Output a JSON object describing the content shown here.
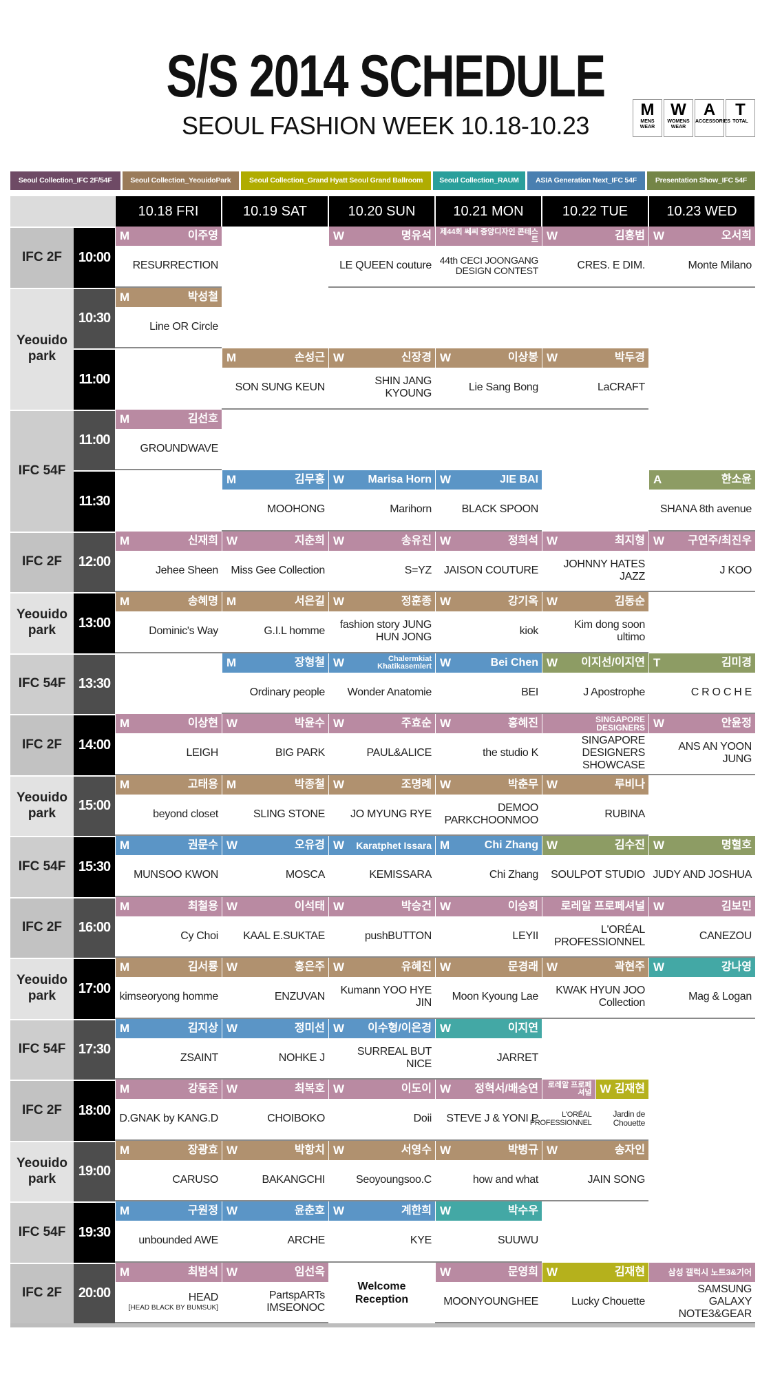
{
  "header": {
    "title": "S/S 2014 SCHEDULE",
    "subtitle": "SEOUL FASHION WEEK 10.18-10.23"
  },
  "icons": [
    {
      "letter": "M",
      "label": "MENS WEAR"
    },
    {
      "letter": "W",
      "label": "WOMENS WEAR"
    },
    {
      "letter": "A",
      "label": "ACCESSORIES"
    },
    {
      "letter": "T",
      "label": "TOTAL"
    }
  ],
  "legend": [
    {
      "label": "Seoul Collection_IFC 2F/54F",
      "color": "#6e4a65"
    },
    {
      "label": "Seoul Collection_YeouidoPark",
      "color": "#9a7b5a"
    },
    {
      "label": "Seoul Collection_Grand Hyatt Seoul Grand Ballroom",
      "color": "#b0ac00"
    },
    {
      "label": "Seoul Collection_RAUM",
      "color": "#2a9f9b"
    },
    {
      "label": "ASIA Generation Next_IFC 54F",
      "color": "#4a7fb0"
    },
    {
      "label": "Presentation Show_IFC 54F",
      "color": "#748547"
    }
  ],
  "days": [
    "10.18 FRI",
    "10.19 SAT",
    "10.20 SUN",
    "10.21 MON",
    "10.22 TUE",
    "10.23 WED"
  ],
  "blocks": [
    {
      "venue": "IFC 2F",
      "color": "#c2c2c2",
      "rows": [
        {
          "time": "10:00",
          "cells": [
            {
              "tag": "M",
              "name": "이주영",
              "brand": "RESURRECTION",
              "color": "#b98aa2"
            },
            null,
            {
              "tag": "W",
              "name": "명유석",
              "brand": "LE QUEEN couture",
              "color": "#b98aa2"
            },
            {
              "name": "제44회 쎄씨 중앙디자인 콘테스트",
              "brand": "44th CECI JOONGANG DESIGN CONTEST",
              "color": "#b98aa2"
            },
            {
              "tag": "W",
              "name": "김홍범",
              "brand": "CRES. E DIM.",
              "color": "#b98aa2"
            },
            {
              "tag": "W",
              "name": "오서희",
              "brand": "Monte Milano",
              "color": "#b98aa2"
            }
          ]
        }
      ]
    },
    {
      "venue": "Yeouido park",
      "color": "#e2e2e2",
      "rows": [
        {
          "time": "10:30",
          "cells": [
            {
              "tag": "M",
              "name": "박성철",
              "brand": "Line OR Circle",
              "color": "#b0916f"
            },
            null,
            null,
            null,
            null,
            null
          ]
        },
        {
          "time": "11:00",
          "cells": [
            null,
            {
              "tag": "M",
              "name": "손성근",
              "brand": "SON SUNG KEUN",
              "color": "#b0916f"
            },
            {
              "tag": "W",
              "name": "신장경",
              "brand": "SHIN JANG KYOUNG",
              "color": "#b0916f"
            },
            {
              "tag": "W",
              "name": "이상봉",
              "brand": "Lie Sang Bong",
              "color": "#b0916f"
            },
            {
              "tag": "W",
              "name": "박두경",
              "brand": "LaCRAFT",
              "color": "#b0916f"
            },
            null
          ]
        }
      ]
    },
    {
      "venue": "IFC 54F",
      "color": "#cdcdcd",
      "rows": [
        {
          "time": "11:00",
          "cells": [
            {
              "tag": "M",
              "name": "김선호",
              "brand": "GROUNDWAVE",
              "color": "#b98aa2"
            },
            null,
            null,
            null,
            null,
            null
          ]
        },
        {
          "time": "11:30",
          "cells": [
            null,
            {
              "tag": "M",
              "name": "김무홍",
              "brand": "MOOHONG",
              "color": "#5b95c6"
            },
            {
              "tag": "W",
              "name": "Marisa Horn",
              "brand": "Marihorn",
              "color": "#5b95c6"
            },
            {
              "tag": "W",
              "name": "JIE BAI",
              "brand": "BLACK SPOON",
              "color": "#5b95c6"
            },
            null,
            {
              "tag": "A",
              "name": "한소윤",
              "brand": "SHANA 8th avenue",
              "color": "#8d9c64"
            }
          ]
        }
      ]
    },
    {
      "venue": "IFC 2F",
      "color": "#c2c2c2",
      "rows": [
        {
          "time": "12:00",
          "cells": [
            {
              "tag": "M",
              "name": "신재희",
              "brand": "Jehee Sheen",
              "color": "#b98aa2"
            },
            {
              "tag": "W",
              "name": "지춘희",
              "brand": "Miss Gee Collection",
              "color": "#b98aa2"
            },
            {
              "tag": "W",
              "name": "송유진",
              "brand": "S=YZ",
              "color": "#b98aa2"
            },
            {
              "tag": "W",
              "name": "정희석",
              "brand": "JAISON COUTURE",
              "color": "#b98aa2"
            },
            {
              "tag": "W",
              "name": "최지형",
              "brand": "JOHNNY HATES JAZZ",
              "color": "#b98aa2"
            },
            {
              "tag": "W",
              "name": "구연주/최진우",
              "brand": "J KOO",
              "color": "#b98aa2"
            }
          ]
        }
      ]
    },
    {
      "venue": "Yeouido park",
      "color": "#e2e2e2",
      "rows": [
        {
          "time": "13:00",
          "cells": [
            {
              "tag": "M",
              "name": "송혜명",
              "brand": "Dominic's Way",
              "color": "#b0916f"
            },
            {
              "tag": "M",
              "name": "서은길",
              "brand": "G.I.L homme",
              "color": "#b0916f"
            },
            {
              "tag": "W",
              "name": "정훈종",
              "brand": "fashion story JUNG HUN JONG",
              "color": "#b0916f"
            },
            {
              "tag": "W",
              "name": "강기옥",
              "brand": "kiok",
              "color": "#b0916f"
            },
            {
              "tag": "W",
              "name": "김동순",
              "brand": "Kim dong soon ultimo",
              "color": "#b0916f"
            },
            null
          ]
        }
      ]
    },
    {
      "venue": "IFC 54F",
      "color": "#cdcdcd",
      "rows": [
        {
          "time": "13:30",
          "cells": [
            null,
            {
              "tag": "M",
              "name": "장형철",
              "brand": "Ordinary people",
              "color": "#5b95c6"
            },
            {
              "tag": "W",
              "name": "Chalermkiat Khatikasemlert",
              "brand": "Wonder Anatomie",
              "color": "#5b95c6"
            },
            {
              "tag": "W",
              "name": "Bei Chen",
              "brand": "BEI",
              "color": "#5b95c6"
            },
            {
              "tag": "W",
              "name": "이지선/이지연",
              "brand": "J Apostrophe",
              "color": "#8d9c64"
            },
            {
              "tag": "T",
              "name": "김미경",
              "brand": "C R O C H E",
              "color": "#8d9c64"
            }
          ]
        }
      ]
    },
    {
      "venue": "IFC 2F",
      "color": "#c2c2c2",
      "rows": [
        {
          "time": "14:00",
          "cells": [
            {
              "tag": "M",
              "name": "이상현",
              "brand": "LEIGH",
              "color": "#b98aa2"
            },
            {
              "tag": "W",
              "name": "박윤수",
              "brand": "BIG PARK",
              "color": "#b98aa2"
            },
            {
              "tag": "W",
              "name": "주효순",
              "brand": "PAUL&ALICE",
              "color": "#b98aa2"
            },
            {
              "tag": "W",
              "name": "홍혜진",
              "brand": "the studio K",
              "color": "#b98aa2"
            },
            {
              "name": "SINGAPORE DESIGNERS",
              "brand": "SINGAPORE DESIGNERS SHOWCASE",
              "color": "#b98aa2"
            },
            {
              "tag": "W",
              "name": "안윤정",
              "brand": "ANS AN YOON JUNG",
              "color": "#b98aa2"
            }
          ]
        }
      ]
    },
    {
      "venue": "Yeouido park",
      "color": "#e2e2e2",
      "rows": [
        {
          "time": "15:00",
          "cells": [
            {
              "tag": "M",
              "name": "고태용",
              "brand": "beyond closet",
              "color": "#b0916f"
            },
            {
              "tag": "M",
              "name": "박종철",
              "brand": "SLING STONE",
              "color": "#b0916f"
            },
            {
              "tag": "W",
              "name": "조명례",
              "brand": "JO MYUNG RYE",
              "color": "#b0916f"
            },
            {
              "tag": "W",
              "name": "박춘무",
              "brand": "DEMOO PARKCHOONMOO",
              "color": "#b0916f"
            },
            {
              "tag": "W",
              "name": "루비나",
              "brand": "RUBINA",
              "color": "#b0916f"
            },
            null
          ]
        }
      ]
    },
    {
      "venue": "IFC 54F",
      "color": "#cdcdcd",
      "rows": [
        {
          "time": "15:30",
          "cells": [
            {
              "tag": "M",
              "name": "권문수",
              "brand": "MUNSOO KWON",
              "color": "#5b95c6"
            },
            {
              "tag": "W",
              "name": "오유경",
              "brand": "MOSCA",
              "color": "#5b95c6"
            },
            {
              "tag": "W",
              "name": "Karatphet Issara",
              "brand": "KEMISSARA",
              "color": "#5b95c6"
            },
            {
              "tag": "M",
              "name": "Chi Zhang",
              "brand": "Chi Zhang",
              "color": "#5b95c6"
            },
            {
              "tag": "W",
              "name": "김수진",
              "brand": "SOULPOT STUDIO",
              "color": "#8d9c64"
            },
            {
              "tag": "W",
              "name": "명혈호",
              "brand": "JUDY AND JOSHUA",
              "color": "#8d9c64"
            }
          ]
        }
      ]
    },
    {
      "venue": "IFC 2F",
      "color": "#c2c2c2",
      "rows": [
        {
          "time": "16:00",
          "cells": [
            {
              "tag": "M",
              "name": "최철용",
              "brand": "Cy Choi",
              "color": "#b98aa2"
            },
            {
              "tag": "W",
              "name": "이석태",
              "brand": "KAAL E.SUKTAE",
              "color": "#b98aa2"
            },
            {
              "tag": "W",
              "name": "박승건",
              "brand": "pushBUTTON",
              "color": "#b98aa2"
            },
            {
              "tag": "W",
              "name": "이승희",
              "brand": "LEYII",
              "color": "#b98aa2"
            },
            {
              "name": "로레알 프로페셔널",
              "brand": "L'ORÉAL PROFESSIONNEL",
              "color": "#b98aa2"
            },
            {
              "tag": "W",
              "name": "김보민",
              "brand": "CANEZOU",
              "color": "#b98aa2"
            }
          ]
        }
      ]
    },
    {
      "venue": "Yeouido park",
      "color": "#e2e2e2",
      "rows": [
        {
          "time": "17:00",
          "cells": [
            {
              "tag": "M",
              "name": "김서룡",
              "brand": "kimseoryong homme",
              "color": "#b0916f"
            },
            {
              "tag": "W",
              "name": "홍은주",
              "brand": "ENZUVAN",
              "color": "#b0916f"
            },
            {
              "tag": "W",
              "name": "유혜진",
              "brand": "Kumann YOO HYE JIN",
              "color": "#b0916f"
            },
            {
              "tag": "W",
              "name": "문경래",
              "brand": "Moon Kyoung Lae",
              "color": "#b0916f"
            },
            {
              "tag": "W",
              "name": "곽현주",
              "brand": "KWAK HYUN JOO Collection",
              "color": "#b0916f"
            },
            {
              "tag": "W",
              "name": "강나영",
              "brand": "Mag & Logan",
              "color": "#43a8a5"
            }
          ]
        }
      ]
    },
    {
      "venue": "IFC 54F",
      "color": "#cdcdcd",
      "rows": [
        {
          "time": "17:30",
          "cells": [
            {
              "tag": "M",
              "name": "김지상",
              "brand": "ZSAINT",
              "color": "#5b95c6"
            },
            {
              "tag": "W",
              "name": "정미선",
              "brand": "NOHKE J",
              "color": "#5b95c6"
            },
            {
              "tag": "W",
              "name": "이수형/이은경",
              "brand": "SURREAL BUT NICE",
              "color": "#5b95c6"
            },
            {
              "tag": "W",
              "name": "이지연",
              "brand": "JARRET",
              "color": "#43a8a5"
            },
            null,
            null
          ]
        }
      ]
    },
    {
      "venue": "IFC 2F",
      "color": "#c2c2c2",
      "rows": [
        {
          "time": "18:00",
          "cells": [
            {
              "tag": "M",
              "name": "강동준",
              "brand": "D.GNAK by KANG.D",
              "color": "#b98aa2"
            },
            {
              "tag": "W",
              "name": "최복호",
              "brand": "CHOIBOKO",
              "color": "#b98aa2"
            },
            {
              "tag": "W",
              "name": "이도이",
              "brand": "Doii",
              "color": "#b98aa2"
            },
            {
              "tag": "W",
              "name": "정혁서/배승연",
              "brand": "STEVE J & YONI P",
              "color": "#b98aa2"
            },
            [
              {
                "name": "로레알 프로페셔널",
                "brand": "L'ORÉAL PROFESSIONNEL",
                "color": "#b98aa2"
              },
              {
                "tag": "W",
                "name": "김재현",
                "brand": "Jardin de Chouette",
                "color": "#b5b11c"
              }
            ],
            null
          ]
        }
      ]
    },
    {
      "venue": "Yeouido park",
      "color": "#e2e2e2",
      "rows": [
        {
          "time": "19:00",
          "cells": [
            {
              "tag": "M",
              "name": "장광효",
              "brand": "CARUSO",
              "color": "#b0916f"
            },
            {
              "tag": "W",
              "name": "박항치",
              "brand": "BAKANGCHI",
              "color": "#b0916f"
            },
            {
              "tag": "W",
              "name": "서영수",
              "brand": "Seoyoungsoo.C",
              "color": "#b0916f"
            },
            {
              "tag": "W",
              "name": "박병규",
              "brand": "how and what",
              "color": "#b0916f"
            },
            {
              "tag": "W",
              "name": "송자인",
              "brand": "JAIN SONG",
              "color": "#b0916f"
            },
            null
          ]
        }
      ]
    },
    {
      "venue": "IFC 54F",
      "color": "#cdcdcd",
      "rows": [
        {
          "time": "19:30",
          "cells": [
            {
              "tag": "M",
              "name": "구원정",
              "brand": "unbounded AWE",
              "color": "#5b95c6"
            },
            {
              "tag": "W",
              "name": "윤춘호",
              "brand": "ARCHE",
              "color": "#5b95c6"
            },
            {
              "tag": "W",
              "name": "계한희",
              "brand": "KYE",
              "color": "#5b95c6"
            },
            {
              "tag": "W",
              "name": "박수우",
              "brand": "SUUWU",
              "color": "#43a8a5"
            },
            null,
            null
          ]
        }
      ]
    },
    {
      "venue": "IFC 2F",
      "color": "#c2c2c2",
      "rows": [
        {
          "time": "20:00",
          "cells": [
            {
              "tag": "M",
              "name": "최범석",
              "brand": "HEAD",
              "sub": "[HEAD BLACK BY BUMSUK]",
              "color": "#b98aa2"
            },
            {
              "tag": "W",
              "name": "임선옥",
              "brand": "PartspARTs IMSEONOC",
              "color": "#b98aa2"
            },
            {
              "text": "Welcome Reception"
            },
            {
              "tag": "W",
              "name": "문영희",
              "brand": "MOONYOUNGHEE",
              "color": "#b98aa2"
            },
            {
              "tag": "W",
              "name": "김재현",
              "brand": "Lucky Chouette",
              "color": "#b5b11c"
            },
            {
              "name": "삼성 갤럭시 노트3&기어",
              "brand": "SAMSUNG GALAXY NOTE3&GEAR",
              "color": "#b98aa2"
            }
          ]
        }
      ]
    }
  ]
}
